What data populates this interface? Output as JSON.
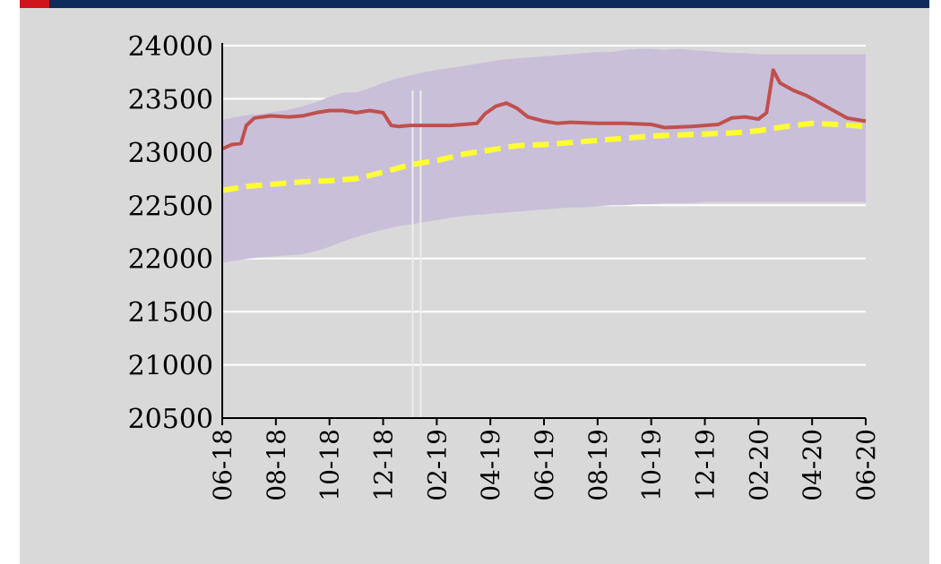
{
  "chart_data": {
    "type": "line",
    "x_labels": [
      "06-18",
      "08-18",
      "10-18",
      "12-18",
      "02-19",
      "04-19",
      "06-19",
      "08-19",
      "10-19",
      "12-19",
      "02-20",
      "04-20",
      "06-20"
    ],
    "y_ticks": [
      "24000",
      "23500",
      "23000",
      "22500",
      "22000",
      "21500",
      "21000",
      "20500"
    ],
    "ylim": [
      20500,
      24000
    ],
    "grid": true,
    "colors": {
      "band": "#c9bfd9",
      "actual": "#c0504d",
      "forecast": "#ffff33",
      "grid": "#ffffff",
      "axis": "#000000",
      "background": "#d9d9d9",
      "topbar": "#0f2b5b",
      "topbar_flag": "#d0141c"
    },
    "series": [
      {
        "role": "band_upper",
        "style": "area",
        "points": [
          [
            0,
            23300
          ],
          [
            0.5,
            23330
          ],
          [
            1,
            23350
          ],
          [
            1.5,
            23360
          ],
          [
            2,
            23380
          ],
          [
            2.5,
            23400
          ],
          [
            3,
            23430
          ],
          [
            3.5,
            23470
          ],
          [
            4,
            23520
          ],
          [
            4.5,
            23560
          ],
          [
            5,
            23560
          ],
          [
            5.5,
            23600
          ],
          [
            6,
            23650
          ],
          [
            6.5,
            23690
          ],
          [
            7,
            23720
          ],
          [
            7.5,
            23750
          ],
          [
            8,
            23770
          ],
          [
            8.5,
            23790
          ],
          [
            9,
            23810
          ],
          [
            9.5,
            23830
          ],
          [
            10,
            23850
          ],
          [
            10.5,
            23870
          ],
          [
            11,
            23880
          ],
          [
            11.5,
            23890
          ],
          [
            12,
            23900
          ],
          [
            12.5,
            23910
          ],
          [
            13,
            23920
          ],
          [
            13.5,
            23930
          ],
          [
            14,
            23940
          ],
          [
            14.5,
            23940
          ],
          [
            15,
            23960
          ],
          [
            15.5,
            23970
          ],
          [
            16,
            23970
          ],
          [
            16.5,
            23960
          ],
          [
            17,
            23970
          ],
          [
            17.5,
            23960
          ],
          [
            18,
            23950
          ],
          [
            18.5,
            23940
          ],
          [
            19,
            23930
          ],
          [
            19.5,
            23930
          ],
          [
            20,
            23920
          ],
          [
            20.5,
            23920
          ],
          [
            21,
            23920
          ],
          [
            21.5,
            23920
          ],
          [
            22,
            23920
          ],
          [
            22.5,
            23920
          ],
          [
            23,
            23920
          ],
          [
            23.5,
            23920
          ],
          [
            24,
            23920
          ]
        ]
      },
      {
        "role": "band_lower",
        "style": "area",
        "points": [
          [
            0,
            21960
          ],
          [
            0.5,
            21980
          ],
          [
            1,
            22000
          ],
          [
            1.5,
            22010
          ],
          [
            2,
            22020
          ],
          [
            2.5,
            22030
          ],
          [
            3,
            22040
          ],
          [
            3.5,
            22070
          ],
          [
            4,
            22110
          ],
          [
            4.5,
            22160
          ],
          [
            5,
            22200
          ],
          [
            5.5,
            22240
          ],
          [
            6,
            22270
          ],
          [
            6.5,
            22300
          ],
          [
            7,
            22320
          ],
          [
            7.5,
            22340
          ],
          [
            8,
            22360
          ],
          [
            8.5,
            22380
          ],
          [
            9,
            22400
          ],
          [
            9.5,
            22410
          ],
          [
            10,
            22420
          ],
          [
            10.5,
            22430
          ],
          [
            11,
            22440
          ],
          [
            11.5,
            22450
          ],
          [
            12,
            22460
          ],
          [
            12.5,
            22470
          ],
          [
            13,
            22480
          ],
          [
            13.5,
            22480
          ],
          [
            14,
            22490
          ],
          [
            14.5,
            22500
          ],
          [
            15,
            22500
          ],
          [
            15.5,
            22510
          ],
          [
            16,
            22510
          ],
          [
            16.5,
            22520
          ],
          [
            17,
            22520
          ],
          [
            17.5,
            22520
          ],
          [
            18,
            22530
          ],
          [
            18.5,
            22530
          ],
          [
            19,
            22530
          ],
          [
            19.5,
            22530
          ],
          [
            20,
            22530
          ],
          [
            20.5,
            22530
          ],
          [
            21,
            22530
          ],
          [
            21.5,
            22530
          ],
          [
            22,
            22530
          ],
          [
            22.5,
            22530
          ],
          [
            23,
            22530
          ],
          [
            23.5,
            22530
          ],
          [
            24,
            22530
          ]
        ]
      },
      {
        "role": "actual",
        "style": "solid",
        "points": [
          [
            0,
            23030
          ],
          [
            0.35,
            23070
          ],
          [
            0.7,
            23080
          ],
          [
            0.9,
            23250
          ],
          [
            1.2,
            23320
          ],
          [
            1.8,
            23340
          ],
          [
            2.5,
            23330
          ],
          [
            3,
            23340
          ],
          [
            3.5,
            23370
          ],
          [
            4,
            23390
          ],
          [
            4.5,
            23390
          ],
          [
            5,
            23370
          ],
          [
            5.5,
            23390
          ],
          [
            6,
            23370
          ],
          [
            6.3,
            23250
          ],
          [
            6.6,
            23240
          ],
          [
            7,
            23250
          ],
          [
            8,
            23250
          ],
          [
            8.5,
            23250
          ],
          [
            9,
            23260
          ],
          [
            9.5,
            23270
          ],
          [
            9.8,
            23360
          ],
          [
            10.2,
            23430
          ],
          [
            10.6,
            23460
          ],
          [
            11,
            23410
          ],
          [
            11.4,
            23330
          ],
          [
            12,
            23290
          ],
          [
            12.5,
            23270
          ],
          [
            13,
            23280
          ],
          [
            14,
            23270
          ],
          [
            15,
            23270
          ],
          [
            16,
            23260
          ],
          [
            16.5,
            23230
          ],
          [
            17.5,
            23240
          ],
          [
            18.5,
            23260
          ],
          [
            19,
            23320
          ],
          [
            19.5,
            23330
          ],
          [
            20,
            23310
          ],
          [
            20.3,
            23370
          ],
          [
            20.55,
            23770
          ],
          [
            20.8,
            23650
          ],
          [
            21.3,
            23580
          ],
          [
            21.8,
            23530
          ],
          [
            22.3,
            23460
          ],
          [
            22.8,
            23390
          ],
          [
            23.3,
            23320
          ],
          [
            24,
            23290
          ]
        ]
      },
      {
        "role": "forecast",
        "style": "dashed",
        "points": [
          [
            0,
            22640
          ],
          [
            1,
            22680
          ],
          [
            2,
            22700
          ],
          [
            3,
            22720
          ],
          [
            4,
            22730
          ],
          [
            5,
            22750
          ],
          [
            6,
            22810
          ],
          [
            7,
            22880
          ],
          [
            8,
            22920
          ],
          [
            9,
            22980
          ],
          [
            10,
            23020
          ],
          [
            11,
            23060
          ],
          [
            12,
            23070
          ],
          [
            13,
            23090
          ],
          [
            14,
            23110
          ],
          [
            15,
            23130
          ],
          [
            16,
            23150
          ],
          [
            17,
            23160
          ],
          [
            18,
            23170
          ],
          [
            19,
            23180
          ],
          [
            20,
            23200
          ],
          [
            21,
            23240
          ],
          [
            22,
            23270
          ],
          [
            23,
            23260
          ],
          [
            24,
            23240
          ]
        ]
      }
    ],
    "gap_markers": [
      7.1,
      7.4
    ]
  }
}
